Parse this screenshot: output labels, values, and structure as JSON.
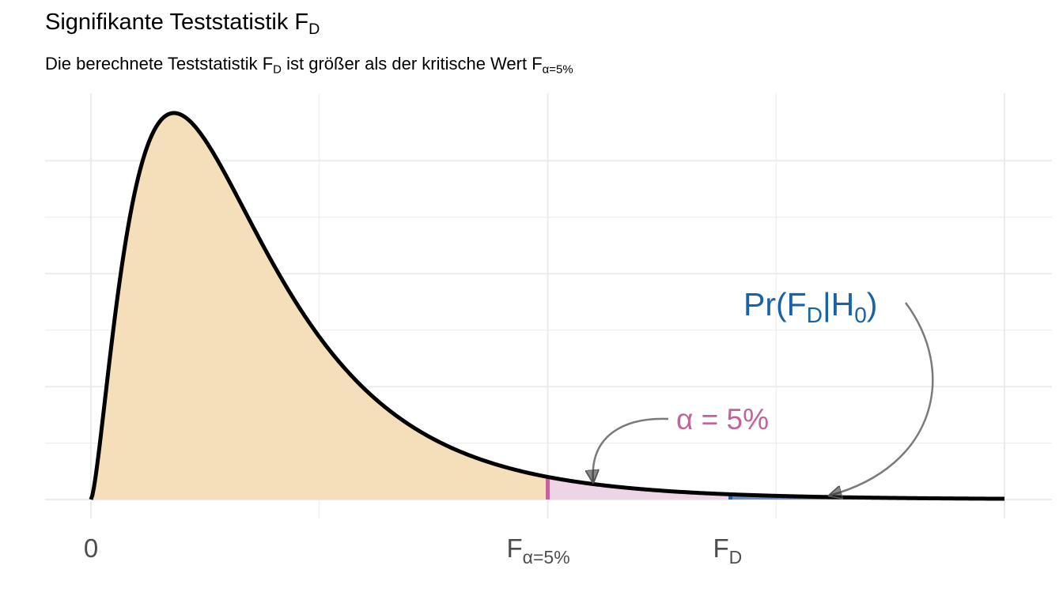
{
  "title": {
    "main": "Signifikante Teststatistik F",
    "sub": "D"
  },
  "subtitle": {
    "part1": "Die berechnete Teststatistik F",
    "sub1": "D",
    "part2": " ist größer als der kritische Wert F",
    "sub2": "α=5%"
  },
  "colors": {
    "body_fill": "#F5DFBA",
    "alpha_fill": "#EDD5E5",
    "p_fill": "#6E8EBF",
    "alpha_color": "#C36399",
    "p_color": "#1763A6",
    "curve": "#000000",
    "grid": "#EBEBEB",
    "arrow": "#7A7A7A",
    "tick_text": "#4D4D4D"
  },
  "chart_data": {
    "type": "area",
    "distribution": "F",
    "df1": 5,
    "df2": 20,
    "xlim": [
      0,
      6
    ],
    "ylim": [
      0,
      0.72
    ],
    "grid": true,
    "x_ticks": [
      {
        "value": 0,
        "label": "0",
        "sub": ""
      },
      {
        "value": 3,
        "label": "F",
        "sub": "α=5%"
      },
      {
        "value": 4.2,
        "label": "F",
        "sub": "D"
      }
    ],
    "regions": [
      {
        "name": "body",
        "from": 0,
        "to": 3,
        "color": "#F5DFBA"
      },
      {
        "name": "alpha",
        "from": 3,
        "to": 4.2,
        "color": "#EDD5E5"
      },
      {
        "name": "p-value",
        "from": 4.2,
        "to": 6,
        "color": "#6E8EBF"
      }
    ],
    "annotations": [
      {
        "text": "α = 5%",
        "color": "#C36399",
        "points_to_x": 3.35
      },
      {
        "text": "Pr(F",
        "sub": "D",
        "text2": "|H",
        "sub2": "0",
        "text3": ")",
        "color": "#1763A6",
        "points_to_x": 4.85
      }
    ]
  }
}
